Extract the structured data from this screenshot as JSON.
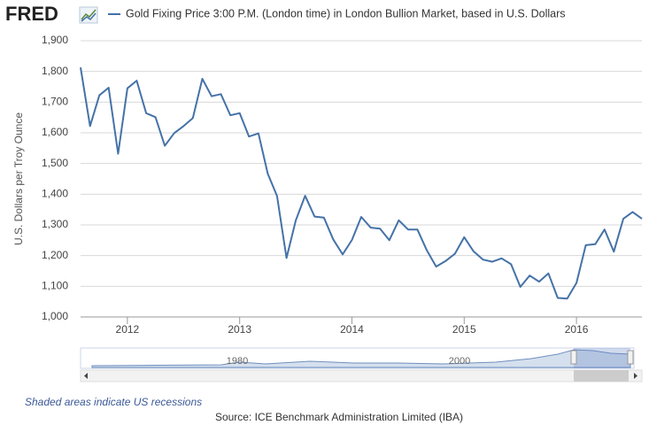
{
  "logo": "FRED",
  "chart_data": {
    "type": "line",
    "x": [
      2011.583,
      2011.667,
      2011.75,
      2011.833,
      2011.917,
      2012,
      2012.083,
      2012.167,
      2012.25,
      2012.333,
      2012.417,
      2012.5,
      2012.583,
      2012.667,
      2012.75,
      2012.833,
      2012.917,
      2013,
      2013.083,
      2013.167,
      2013.25,
      2013.333,
      2013.417,
      2013.5,
      2013.583,
      2013.667,
      2013.75,
      2013.833,
      2013.917,
      2014,
      2014.083,
      2014.167,
      2014.25,
      2014.333,
      2014.417,
      2014.5,
      2014.583,
      2014.667,
      2014.75,
      2014.833,
      2014.917,
      2015,
      2015.083,
      2015.167,
      2015.25,
      2015.333,
      2015.417,
      2015.5,
      2015.583,
      2015.667,
      2015.75,
      2015.833,
      2015.917,
      2016,
      2016.083,
      2016.167,
      2016.25,
      2016.333,
      2016.417,
      2016.5,
      2016.583
    ],
    "series": [
      {
        "name": "Gold Fixing Price 3:00 P.M. (London time) in London Bullion Market, based in U.S. Dollars",
        "color": "#4572a7",
        "values": [
          1813,
          1622,
          1722,
          1747,
          1532,
          1745,
          1770,
          1664,
          1651,
          1558,
          1599,
          1622,
          1648,
          1776,
          1719,
          1726,
          1657,
          1664,
          1588,
          1598,
          1467,
          1394,
          1192,
          1315,
          1395,
          1327,
          1324,
          1253,
          1204,
          1251,
          1326,
          1291,
          1288,
          1250,
          1315,
          1285,
          1285,
          1217,
          1164,
          1182,
          1206,
          1260,
          1214,
          1187,
          1180,
          1191,
          1172,
          1098,
          1135,
          1115,
          1142,
          1062,
          1060,
          1111,
          1234,
          1237,
          1285,
          1213,
          1320,
          1342,
          1320
        ]
      }
    ],
    "ylabel": "U.S. Dollars per Troy Ounce",
    "xlim": [
      2011.583,
      2016.583
    ],
    "xticks": [
      2012,
      2013,
      2014,
      2015,
      2016
    ],
    "ylim": [
      1000,
      1900
    ],
    "yticks": [
      {
        "value": 1000,
        "label": "1,000"
      },
      {
        "value": 1100,
        "label": "1,100"
      },
      {
        "value": 1200,
        "label": "1,200"
      },
      {
        "value": 1300,
        "label": "1,300"
      },
      {
        "value": 1400,
        "label": "1,400"
      },
      {
        "value": 1500,
        "label": "1,500"
      },
      {
        "value": 1600,
        "label": "1,600"
      },
      {
        "value": 1700,
        "label": "1,700"
      },
      {
        "value": 1800,
        "label": "1,800"
      },
      {
        "value": 1900,
        "label": "1,900"
      }
    ],
    "grid": true
  },
  "navigator": {
    "labels": [
      "1980",
      "2000"
    ]
  },
  "footer": {
    "note": "Shaded areas indicate US recessions",
    "source": "Source: ICE Benchmark Administration Limited (IBA)"
  }
}
